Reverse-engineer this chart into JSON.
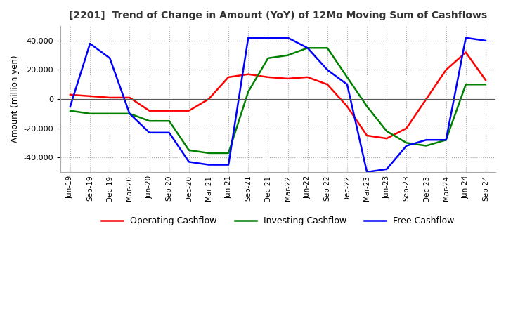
{
  "title": "[2201]  Trend of Change in Amount (YoY) of 12Mo Moving Sum of Cashflows",
  "ylabel": "Amount (million yen)",
  "x_labels": [
    "Jun-19",
    "Sep-19",
    "Dec-19",
    "Mar-20",
    "Jun-20",
    "Sep-20",
    "Dec-20",
    "Mar-21",
    "Jun-21",
    "Sep-21",
    "Dec-21",
    "Mar-22",
    "Jun-22",
    "Sep-22",
    "Dec-22",
    "Mar-23",
    "Jun-23",
    "Sep-23",
    "Dec-23",
    "Mar-24",
    "Jun-24",
    "Sep-24"
  ],
  "operating": [
    3000,
    2000,
    1000,
    1000,
    -8000,
    -8000,
    -8000,
    0,
    15000,
    17000,
    15000,
    14000,
    15000,
    10000,
    -5000,
    -25000,
    -27000,
    -20000,
    0,
    20000,
    32000,
    13000
  ],
  "investing": [
    -8000,
    -10000,
    -10000,
    -10000,
    -15000,
    -15000,
    -35000,
    -37000,
    -37000,
    5000,
    28000,
    30000,
    35000,
    35000,
    15000,
    -5000,
    -22000,
    -30000,
    -32000,
    -28000,
    10000,
    10000
  ],
  "free": [
    -5000,
    38000,
    28000,
    -10000,
    -23000,
    -23000,
    -43000,
    -45000,
    -45000,
    42000,
    42000,
    42000,
    35000,
    20000,
    10000,
    -50000,
    -48000,
    -32000,
    -28000,
    -28000,
    42000,
    40000
  ],
  "operating_color": "#ff0000",
  "investing_color": "#008000",
  "free_color": "#0000ff",
  "ylim": [
    -50000,
    50000
  ],
  "yticks": [
    -40000,
    -20000,
    0,
    20000,
    40000
  ],
  "title_color": "#333333",
  "background_color": "#ffffff",
  "grid_color": "#aaaaaa"
}
